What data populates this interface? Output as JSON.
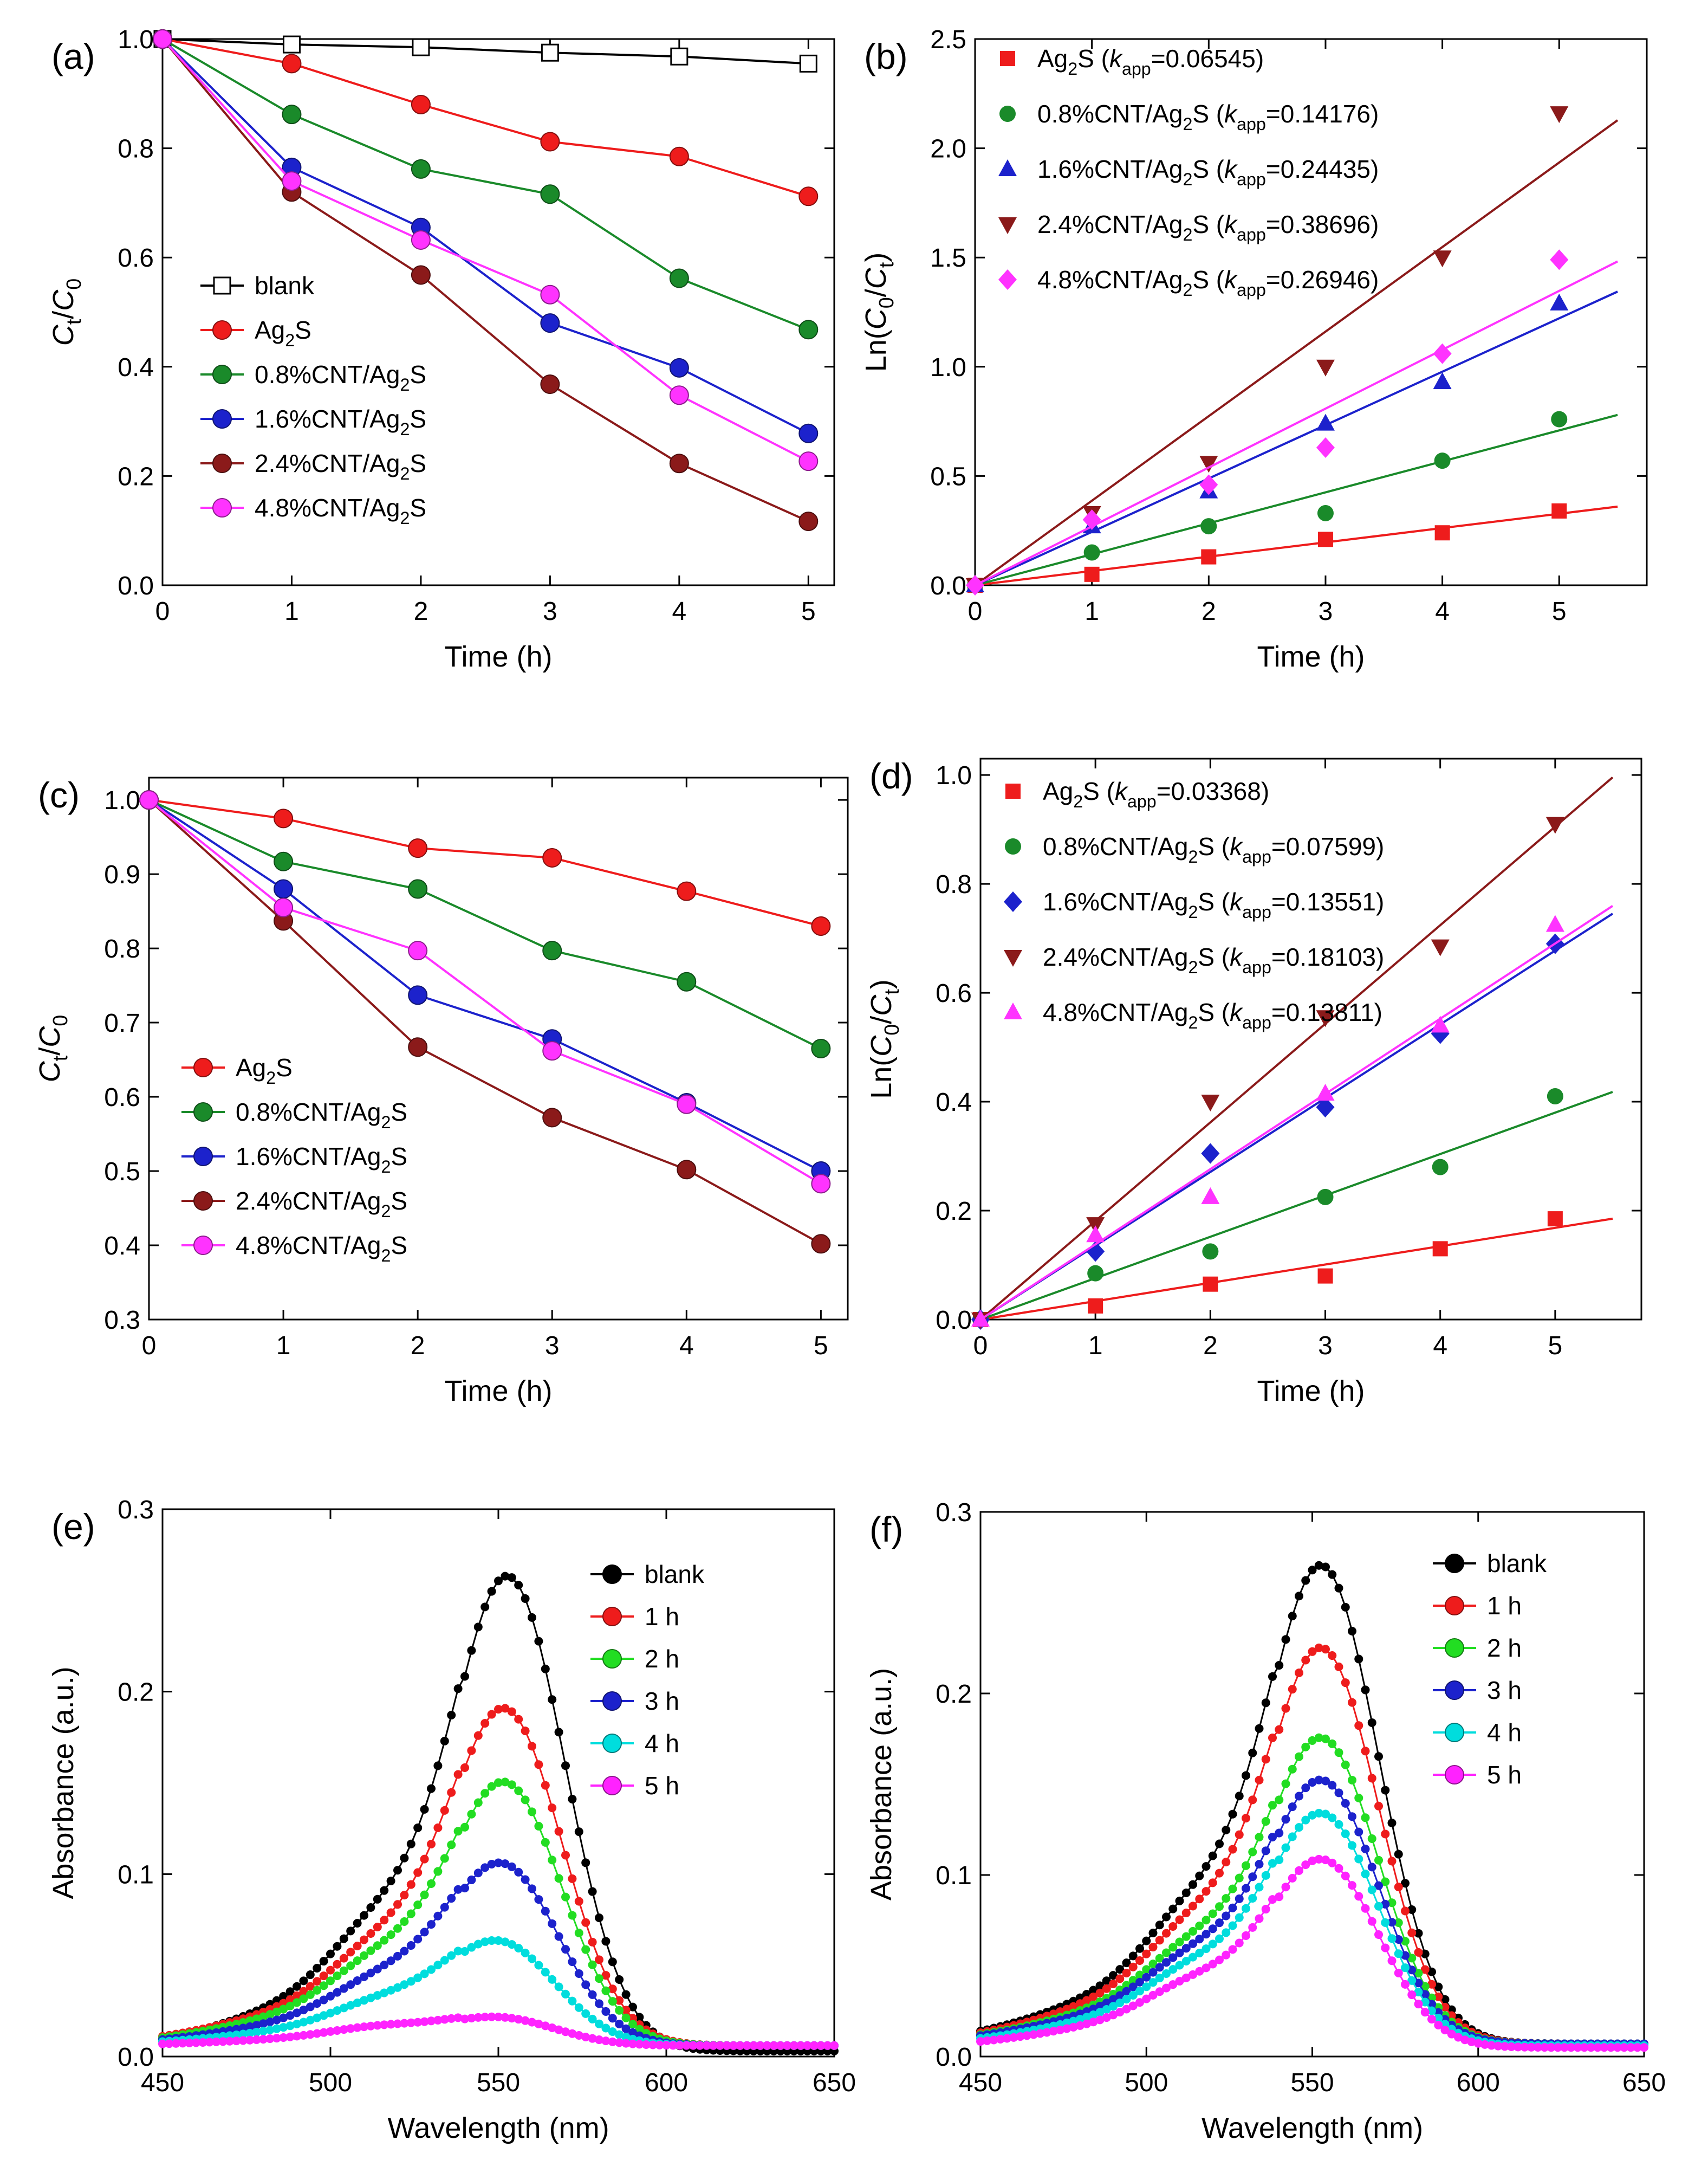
{
  "chart_data": [
    {
      "panel": "(a)",
      "type": "line",
      "xlabel": "Time (h)",
      "ylabel": "Ct/C0",
      "xlim": [
        0,
        5.2
      ],
      "ylim": [
        0.0,
        1.0
      ],
      "xticks": [
        0,
        1,
        2,
        3,
        4,
        5
      ],
      "yticks": [
        0.0,
        0.2,
        0.4,
        0.6,
        0.8,
        1.0
      ],
      "legend_position": "left",
      "x": [
        0,
        1,
        2,
        3,
        4,
        5
      ],
      "series": [
        {
          "name": "blank",
          "color": "#000000",
          "marker": "open-square",
          "values": [
            1.0,
            0.99,
            0.985,
            0.975,
            0.968,
            0.955
          ]
        },
        {
          "name": "Ag2S",
          "color": "#ee1c1c",
          "marker": "sphere",
          "values": [
            1.0,
            0.955,
            0.88,
            0.812,
            0.785,
            0.712
          ]
        },
        {
          "name": "0.8%CNT/Ag2S",
          "color": "#1a8a2a",
          "marker": "sphere",
          "values": [
            1.0,
            0.862,
            0.762,
            0.716,
            0.562,
            0.468
          ]
        },
        {
          "name": "1.6%CNT/Ag2S",
          "color": "#1c22cc",
          "marker": "sphere",
          "values": [
            1.0,
            0.765,
            0.655,
            0.48,
            0.398,
            0.278
          ]
        },
        {
          "name": "2.4%CNT/Ag2S",
          "color": "#8b1a1a",
          "marker": "sphere",
          "values": [
            1.0,
            0.72,
            0.568,
            0.368,
            0.223,
            0.117
          ]
        },
        {
          "name": "4.8%CNT/Ag2S",
          "color": "#ff33ff",
          "marker": "sphere",
          "values": [
            1.0,
            0.74,
            0.632,
            0.532,
            0.348,
            0.227
          ]
        }
      ]
    },
    {
      "panel": "(b)",
      "type": "scatter",
      "xlabel": "Time (h)",
      "ylabel": "Ln(C0/Ct)",
      "xlim": [
        0,
        5.75
      ],
      "ylim": [
        0.0,
        2.5
      ],
      "xticks": [
        0,
        1,
        2,
        3,
        4,
        5
      ],
      "yticks": [
        0.0,
        0.5,
        1.0,
        1.5,
        2.0,
        2.5
      ],
      "legend_position": "top-left",
      "fit_x_max": 5.5,
      "x": [
        0,
        1,
        2,
        3,
        4,
        5
      ],
      "series": [
        {
          "name": "Ag2S (kapp=0.06545)",
          "color": "#ee1c1c",
          "marker": "square",
          "values": [
            0,
            0.05,
            0.13,
            0.21,
            0.24,
            0.34
          ],
          "slope": 0.06545
        },
        {
          "name": "0.8%CNT/Ag2S (kapp=0.14176)",
          "color": "#1a8a2a",
          "marker": "circle",
          "values": [
            0,
            0.15,
            0.27,
            0.33,
            0.57,
            0.76
          ],
          "slope": 0.14176
        },
        {
          "name": "1.6%CNT/Ag2S (kapp=0.24435)",
          "color": "#1c22cc",
          "marker": "triangle-up",
          "values": [
            0,
            0.27,
            0.43,
            0.74,
            0.93,
            1.29
          ],
          "slope": 0.24435
        },
        {
          "name": "2.4%CNT/Ag2S (kapp=0.38696)",
          "color": "#8b1a1a",
          "marker": "triangle-down",
          "values": [
            0,
            0.33,
            0.56,
            1.0,
            1.5,
            2.16
          ],
          "slope": 0.38696
        },
        {
          "name": "4.8%CNT/Ag2S (kapp=0.26946)",
          "color": "#ff33ff",
          "marker": "diamond",
          "values": [
            0,
            0.3,
            0.46,
            0.63,
            1.06,
            1.49
          ],
          "slope": 0.26946
        }
      ]
    },
    {
      "panel": "(c)",
      "type": "line",
      "xlabel": "Time (h)",
      "ylabel": "Ct/C0",
      "xlim": [
        0,
        5.2
      ],
      "ylim": [
        0.3,
        1.03
      ],
      "xticks": [
        0,
        1,
        2,
        3,
        4,
        5
      ],
      "yticks": [
        0.3,
        0.4,
        0.5,
        0.6,
        0.7,
        0.8,
        0.9,
        1.0
      ],
      "legend_position": "left",
      "x": [
        0,
        1,
        2,
        3,
        4,
        5
      ],
      "series": [
        {
          "name": "Ag2S",
          "color": "#ee1c1c",
          "marker": "sphere",
          "values": [
            1.0,
            0.975,
            0.935,
            0.922,
            0.877,
            0.83
          ]
        },
        {
          "name": "0.8%CNT/Ag2S",
          "color": "#1a8a2a",
          "marker": "sphere",
          "values": [
            1.0,
            0.917,
            0.88,
            0.797,
            0.755,
            0.665
          ]
        },
        {
          "name": "1.6%CNT/Ag2S",
          "color": "#1c22cc",
          "marker": "sphere",
          "values": [
            1.0,
            0.88,
            0.737,
            0.678,
            0.592,
            0.5
          ]
        },
        {
          "name": "2.4%CNT/Ag2S",
          "color": "#8b1a1a",
          "marker": "sphere",
          "values": [
            1.0,
            0.837,
            0.667,
            0.572,
            0.502,
            0.402
          ]
        },
        {
          "name": "4.8%CNT/Ag2S",
          "color": "#ff33ff",
          "marker": "sphere",
          "values": [
            1.0,
            0.855,
            0.797,
            0.662,
            0.59,
            0.483
          ]
        }
      ]
    },
    {
      "panel": "(d)",
      "type": "scatter",
      "xlabel": "Time (h)",
      "ylabel": "Ln(C0/Ct)",
      "xlim": [
        0,
        5.75
      ],
      "ylim": [
        0.0,
        1.03
      ],
      "xticks": [
        0,
        1,
        2,
        3,
        4,
        5
      ],
      "yticks": [
        0.0,
        0.2,
        0.4,
        0.6,
        0.8,
        1.0
      ],
      "legend_position": "top-left",
      "fit_x_max": 5.5,
      "x": [
        0,
        1,
        2,
        3,
        4,
        5
      ],
      "series": [
        {
          "name": "Ag2S (kapp=0.03368)",
          "color": "#ee1c1c",
          "marker": "square",
          "values": [
            0,
            0.025,
            0.065,
            0.08,
            0.13,
            0.185
          ],
          "slope": 0.03368
        },
        {
          "name": "0.8%CNT/Ag2S (kapp=0.07599)",
          "color": "#1a8a2a",
          "marker": "circle",
          "values": [
            0,
            0.085,
            0.125,
            0.225,
            0.28,
            0.41
          ],
          "slope": 0.07599
        },
        {
          "name": "1.6%CNT/Ag2S (kapp=0.13551)",
          "color": "#1c22cc",
          "marker": "diamond",
          "values": [
            0,
            0.125,
            0.305,
            0.39,
            0.525,
            0.69
          ],
          "slope": 0.13551
        },
        {
          "name": "2.4%CNT/Ag2S (kapp=0.18103)",
          "color": "#8b1a1a",
          "marker": "triangle-down",
          "values": [
            0,
            0.175,
            0.4,
            0.555,
            0.685,
            0.91
          ],
          "slope": 0.18103
        },
        {
          "name": "4.8%CNT/Ag2S (kapp=0.13811)",
          "color": "#ff33ff",
          "marker": "triangle-up",
          "values": [
            0,
            0.155,
            0.225,
            0.415,
            0.54,
            0.725
          ],
          "slope": 0.13811
        }
      ]
    },
    {
      "panel": "(e)",
      "type": "line",
      "xlabel": "Wavelength (nm)",
      "ylabel": "Absorbance (a.u.)",
      "xlim": [
        450,
        650
      ],
      "ylim": [
        0.0,
        0.3
      ],
      "xticks": [
        450,
        500,
        550,
        600,
        650
      ],
      "yticks": [
        0.0,
        0.1,
        0.2,
        0.3
      ],
      "legend_position": "top-right",
      "sampling_step_nm": 2,
      "series": [
        {
          "name": "blank",
          "color": "#000000",
          "peak_nm": 553,
          "peak_abs": 0.26,
          "shoulder_nm": 515,
          "shoulder_abs": 0.075,
          "base_abs": 0.003
        },
        {
          "name": "1 h",
          "color": "#ee1c1c",
          "peak_nm": 552,
          "peak_abs": 0.188,
          "shoulder_nm": 515,
          "shoulder_abs": 0.058,
          "base_abs": 0.006
        },
        {
          "name": "2 h",
          "color": "#22dd22",
          "peak_nm": 552,
          "peak_abs": 0.148,
          "shoulder_nm": 515,
          "shoulder_abs": 0.05,
          "base_abs": 0.006
        },
        {
          "name": "3 h",
          "color": "#1c22cc",
          "peak_nm": 551,
          "peak_abs": 0.104,
          "shoulder_nm": 515,
          "shoulder_abs": 0.038,
          "base_abs": 0.006
        },
        {
          "name": "4 h",
          "color": "#00dddd",
          "peak_nm": 550,
          "peak_abs": 0.062,
          "shoulder_nm": 515,
          "shoulder_abs": 0.025,
          "base_abs": 0.006
        },
        {
          "name": "5 h",
          "color": "#ff22ff",
          "peak_nm": 550,
          "peak_abs": 0.021,
          "shoulder_nm": 515,
          "shoulder_abs": 0.011,
          "base_abs": 0.006
        }
      ]
    },
    {
      "panel": "(f)",
      "type": "line",
      "xlabel": "Wavelength (nm)",
      "ylabel": "Absorbance (a.u.)",
      "xlim": [
        450,
        650
      ],
      "ylim": [
        0.0,
        0.3
      ],
      "xticks": [
        450,
        500,
        550,
        600,
        650
      ],
      "yticks": [
        0.0,
        0.1,
        0.2,
        0.3
      ],
      "legend_position": "top-right",
      "sampling_step_nm": 2,
      "series": [
        {
          "name": "blank",
          "color": "#000000",
          "peak_nm": 553,
          "peak_abs": 0.267,
          "shoulder_nm": 515,
          "shoulder_abs": 0.08,
          "base_abs": 0.007
        },
        {
          "name": "1 h",
          "color": "#ee1c1c",
          "peak_nm": 553,
          "peak_abs": 0.222,
          "shoulder_nm": 515,
          "shoulder_abs": 0.07,
          "base_abs": 0.007
        },
        {
          "name": "2 h",
          "color": "#22dd22",
          "peak_nm": 553,
          "peak_abs": 0.173,
          "shoulder_nm": 515,
          "shoulder_abs": 0.058,
          "base_abs": 0.007
        },
        {
          "name": "3 h",
          "color": "#1c22cc",
          "peak_nm": 553,
          "peak_abs": 0.15,
          "shoulder_nm": 515,
          "shoulder_abs": 0.052,
          "base_abs": 0.007
        },
        {
          "name": "4 h",
          "color": "#00dddd",
          "peak_nm": 553,
          "peak_abs": 0.132,
          "shoulder_nm": 515,
          "shoulder_abs": 0.046,
          "base_abs": 0.006
        },
        {
          "name": "5 h",
          "color": "#ff22ff",
          "peak_nm": 553,
          "peak_abs": 0.107,
          "shoulder_nm": 515,
          "shoulder_abs": 0.038,
          "base_abs": 0.005
        }
      ]
    }
  ]
}
